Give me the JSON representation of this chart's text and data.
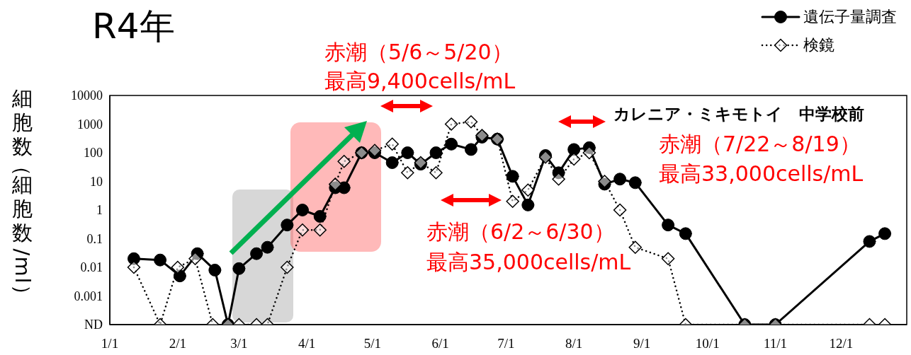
{
  "chart_data": {
    "type": "line",
    "title": "R4年",
    "ylabel": "細胞数（細胞数/ml）",
    "annotations": [
      "赤潮（5/6～5/20）",
      "最高9,400cells/mL",
      "赤潮（6/2～6/30）",
      "最高35,000cells/mL",
      "カレニア・ミキモトイ　中学校前",
      "赤潮（7/22～8/19）",
      "最高33,000cells/mL"
    ],
    "series": [
      {
        "name": "遺伝子量調査",
        "color": "#000000",
        "marker": "circle",
        "line_style": "solid",
        "x": [
          "--01-12",
          "--01-24",
          "--02-02",
          "--02-10",
          "--02-18",
          "--02-24",
          "--03-01",
          "--03-09",
          "--03-14",
          "--03-23",
          "--03-30",
          "--04-07",
          "--04-14",
          "--04-18",
          "--04-26",
          "--05-02",
          "--05-10",
          "--05-17",
          "--05-23",
          "--05-30",
          "--06-06",
          "--06-15",
          "--06-20",
          "--06-27",
          "--07-04",
          "--07-11",
          "--07-19",
          "--07-25",
          "--08-01",
          "--08-08",
          "--08-15",
          "--08-22",
          "--08-29",
          "--09-13",
          "--09-21",
          "--10-18",
          "--11-01",
          "--12-14",
          "--12-21"
        ],
        "values": [
          0.02,
          0.018,
          0.005,
          0.03,
          0.008,
          0.0001,
          0.009,
          0.03,
          0.05,
          0.3,
          1,
          0.6,
          6,
          6,
          100,
          100,
          45,
          100,
          40,
          100,
          200,
          130,
          350,
          300,
          15,
          1.5,
          80,
          20,
          130,
          150,
          8,
          12,
          9,
          0.3,
          0.15,
          0.0001,
          0.0001,
          0.08,
          0.15
        ]
      },
      {
        "name": "検鏡",
        "color": "#000000",
        "marker": "diamond",
        "line_style": "dotted",
        "x": [
          "--01-12",
          "--01-24",
          "--02-01",
          "--02-09",
          "--02-17",
          "--02-24",
          "--03-01",
          "--03-09",
          "--03-14",
          "--03-23",
          "--03-30",
          "--04-07",
          "--04-14",
          "--04-18",
          "--04-26",
          "--05-02",
          "--05-10",
          "--05-17",
          "--05-23",
          "--05-30",
          "--06-06",
          "--06-15",
          "--06-20",
          "--06-27",
          "--07-04",
          "--07-11",
          "--07-19",
          "--07-25",
          "--08-01",
          "--08-08",
          "--08-15",
          "--08-22",
          "--08-29",
          "--09-13",
          "--09-21",
          "--10-18",
          "--11-01",
          "--12-14",
          "--12-21"
        ],
        "values": [
          0.01,
          0.0001,
          0.01,
          0.02,
          0.0001,
          0.0001,
          0.0001,
          0.0001,
          0.0001,
          0.01,
          0.2,
          0.2,
          8,
          50,
          100,
          120,
          200,
          20,
          45,
          20,
          1000,
          1200,
          400,
          300,
          2,
          5,
          70,
          12,
          60,
          100,
          10,
          1,
          0.05,
          0.02,
          0.0001,
          0.0001,
          0.0001,
          0.0001,
          0.0001
        ]
      }
    ],
    "xlim": [
      "--01-01",
      "--12-31"
    ],
    "xticks": [
      {
        "value": "--01-01",
        "label": "1/1"
      },
      {
        "value": "--02-01",
        "label": "2/1"
      },
      {
        "value": "--03-01",
        "label": "3/1"
      },
      {
        "value": "--04-01",
        "label": "4/1"
      },
      {
        "value": "--05-01",
        "label": "5/1"
      },
      {
        "value": "--06-01",
        "label": "6/1"
      },
      {
        "value": "--07-01",
        "label": "7/1"
      },
      {
        "value": "--08-01",
        "label": "8/1"
      },
      {
        "value": "--09-01",
        "label": "9/1"
      },
      {
        "value": "--10-01",
        "label": "10/1"
      },
      {
        "value": "--11-01",
        "label": "11/1"
      },
      {
        "value": "--12-01",
        "label": "12/1"
      }
    ],
    "ylim": [
      0.0001,
      10000
    ],
    "yticks": [
      {
        "value": 0.0001,
        "label": "ND"
      },
      0.001,
      0.01,
      0.1,
      1,
      10,
      100,
      1000,
      10000
    ],
    "log": "y",
    "legend": "top right"
  }
}
